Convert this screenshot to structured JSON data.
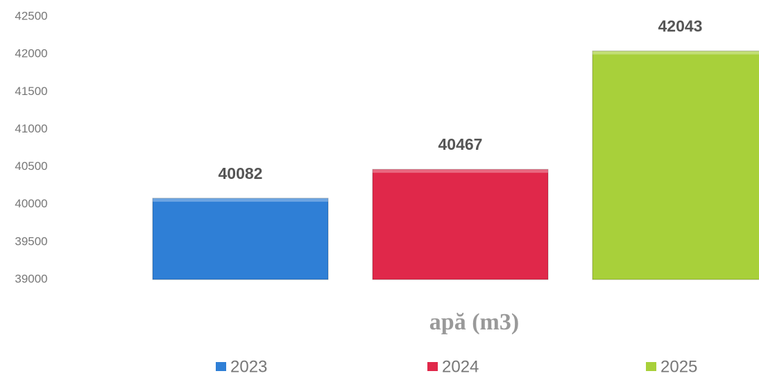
{
  "chart_data": {
    "type": "bar",
    "categories": [
      "apă (m3)"
    ],
    "series": [
      {
        "name": "2023",
        "color": "#2f7fd6",
        "values": [
          40082
        ]
      },
      {
        "name": "2024",
        "color": "#e0284a",
        "values": [
          40467
        ]
      },
      {
        "name": "2025",
        "color": "#a8d03a",
        "values": [
          42043
        ]
      }
    ],
    "ylim": [
      39000,
      42500
    ],
    "yticks": [
      39000,
      39500,
      40000,
      40500,
      41000,
      41500,
      42000,
      42500
    ],
    "grid": false,
    "legend": "bottom"
  }
}
